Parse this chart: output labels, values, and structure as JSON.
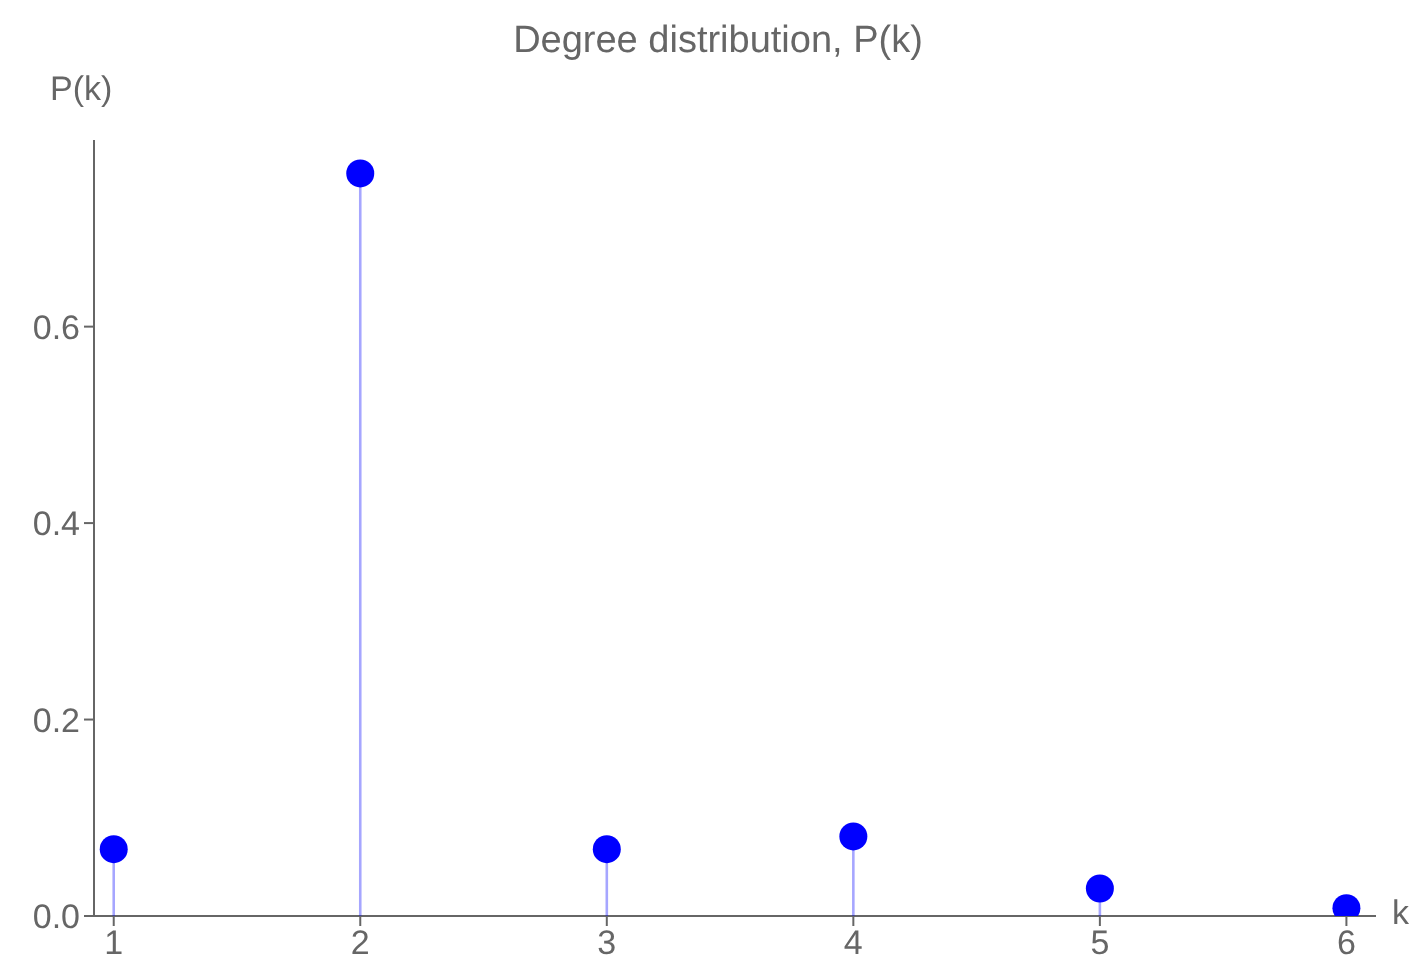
{
  "chart_data": {
    "type": "lollipop",
    "title": "Degree distribution, P(k)",
    "xlabel": "k",
    "ylabel": "P(k)",
    "x": [
      1,
      2,
      3,
      4,
      5,
      6
    ],
    "series": [
      {
        "color": "#0000ff",
        "values": [
          0.068,
          0.756,
          0.068,
          0.081,
          0.028,
          0.008
        ]
      }
    ],
    "xlim": [
      0.92,
      6.12
    ],
    "xticks": [
      1,
      2,
      3,
      4,
      5,
      6
    ],
    "ylim": [
      0,
      0.79
    ],
    "yticks": [
      {
        "value": 0,
        "label": "0.0"
      },
      {
        "value": 0.2,
        "label": "0.2"
      },
      {
        "value": 0.4,
        "label": "0.4"
      },
      {
        "value": 0.6,
        "label": "0.6"
      }
    ],
    "marker": "circle",
    "grid": false,
    "legend": false
  }
}
